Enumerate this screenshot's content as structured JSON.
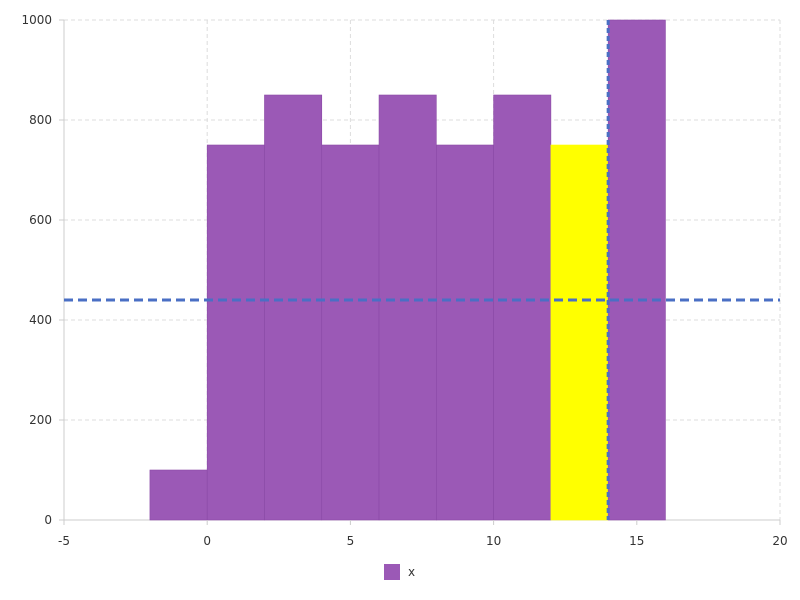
{
  "chart_data": {
    "type": "bar",
    "subtype": "histogram",
    "xlim": [
      -5,
      20
    ],
    "ylim": [
      0,
      1000
    ],
    "x_ticks": [
      -5,
      0,
      5,
      10,
      15,
      20
    ],
    "y_ticks": [
      0,
      200,
      400,
      600,
      800,
      1000
    ],
    "grid": true,
    "legend_position": "bottom-center",
    "bin_width": 2,
    "bins": [
      {
        "start": -2,
        "end": 0,
        "value": 100
      },
      {
        "start": 0,
        "end": 2,
        "value": 750
      },
      {
        "start": 2,
        "end": 4,
        "value": 850
      },
      {
        "start": 4,
        "end": 6,
        "value": 750
      },
      {
        "start": 6,
        "end": 8,
        "value": 850
      },
      {
        "start": 8,
        "end": 10,
        "value": 750
      },
      {
        "start": 10,
        "end": 12,
        "value": 850
      },
      {
        "start": 12,
        "end": 14,
        "value": 750,
        "highlighted": true
      },
      {
        "start": 14,
        "end": 16,
        "value": 1000
      }
    ],
    "series": [
      {
        "name": "x",
        "color": "#9b59b6"
      }
    ],
    "highlight_color": "#ffff00",
    "crosshair": {
      "x": 14,
      "y": 440,
      "color": "#4a6fc4"
    }
  },
  "legend": {
    "label": "x"
  }
}
